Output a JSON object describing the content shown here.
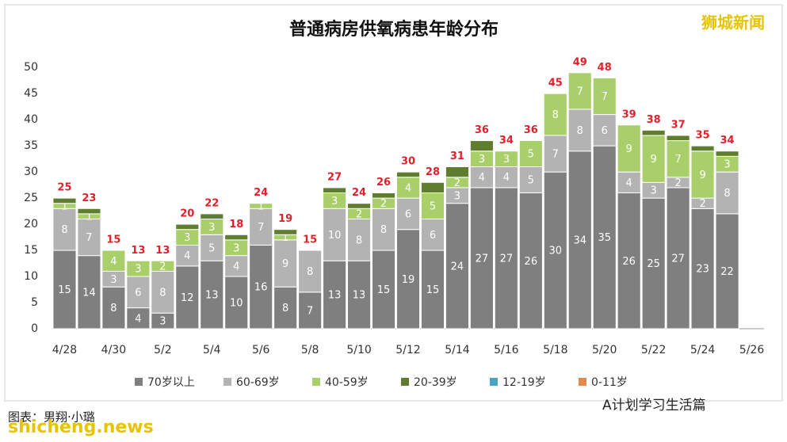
{
  "chart_data": {
    "type": "stacked-bar",
    "title": "普通病房供氧病患年龄分布",
    "categories": [
      "4/28",
      null,
      "4/30",
      null,
      "5/2",
      null,
      "5/4",
      null,
      "5/6",
      null,
      "5/8",
      null,
      "5/10",
      null,
      "5/12",
      null,
      "5/14",
      null,
      "5/16",
      null,
      "5/18",
      null,
      "5/20",
      null,
      "5/22",
      null,
      "5/24",
      null,
      "5/26"
    ],
    "series": [
      {
        "name": "70岁以上",
        "color": "#7f7f7f",
        "values": [
          15,
          14,
          8,
          4,
          3,
          12,
          13,
          10,
          16,
          8,
          7,
          13,
          13,
          15,
          19,
          15,
          24,
          27,
          27,
          26,
          30,
          34,
          35,
          26,
          25,
          27,
          23,
          22,
          null
        ]
      },
      {
        "name": "60-69岁",
        "color": "#b3b3b3",
        "values": [
          8,
          7,
          3,
          6,
          8,
          4,
          5,
          4,
          7,
          9,
          8,
          10,
          8,
          8,
          6,
          6,
          3,
          4,
          4,
          5,
          7,
          8,
          6,
          4,
          3,
          2,
          2,
          8,
          null
        ]
      },
      {
        "name": "40-59岁",
        "color": "#a8cf6a",
        "values": [
          1,
          1,
          4,
          3,
          2,
          3,
          3,
          3,
          1,
          1,
          0,
          3,
          2,
          2,
          4,
          5,
          2,
          3,
          3,
          5,
          8,
          7,
          7,
          9,
          9,
          7,
          9,
          3,
          null
        ]
      },
      {
        "name": "20-39岁",
        "color": "#5f7d2f",
        "values": [
          1,
          1,
          0,
          0,
          0,
          1,
          1,
          1,
          0,
          1,
          0,
          1,
          1,
          1,
          1,
          2,
          2,
          2,
          0,
          0,
          0,
          0,
          0,
          0,
          1,
          1,
          1,
          1,
          null
        ]
      },
      {
        "name": "12-19岁",
        "color": "#4aa3c4",
        "values": [
          0,
          0,
          0,
          0,
          0,
          0,
          0,
          0,
          0,
          0,
          0,
          0,
          0,
          0,
          0,
          0,
          0,
          0,
          0,
          0,
          0,
          0,
          0,
          0,
          0,
          0,
          0,
          0,
          null
        ]
      },
      {
        "name": "0-11岁",
        "color": "#e08a4b",
        "values": [
          0,
          0,
          0,
          0,
          0,
          0,
          0,
          0,
          0,
          0,
          0,
          0,
          0,
          0,
          0,
          0,
          0,
          0,
          0,
          0,
          0,
          0,
          0,
          0,
          0,
          0,
          0,
          0,
          null
        ]
      }
    ],
    "totals": [
      25,
      23,
      15,
      13,
      13,
      20,
      22,
      18,
      24,
      19,
      15,
      27,
      24,
      26,
      30,
      28,
      31,
      36,
      34,
      36,
      45,
      49,
      48,
      39,
      38,
      37,
      35,
      34,
      null
    ],
    "total_color": "#e0202a",
    "ylim": [
      0,
      52
    ],
    "yticks": [
      0,
      5,
      10,
      15,
      20,
      25,
      30,
      35,
      40,
      45,
      50
    ],
    "grid": false,
    "legend": "bottom"
  },
  "watermark": "狮城新闻",
  "footer": {
    "credit": "图表：男翔·小璐",
    "source": "A计划学习生活篇",
    "site": "shicheng.news"
  }
}
